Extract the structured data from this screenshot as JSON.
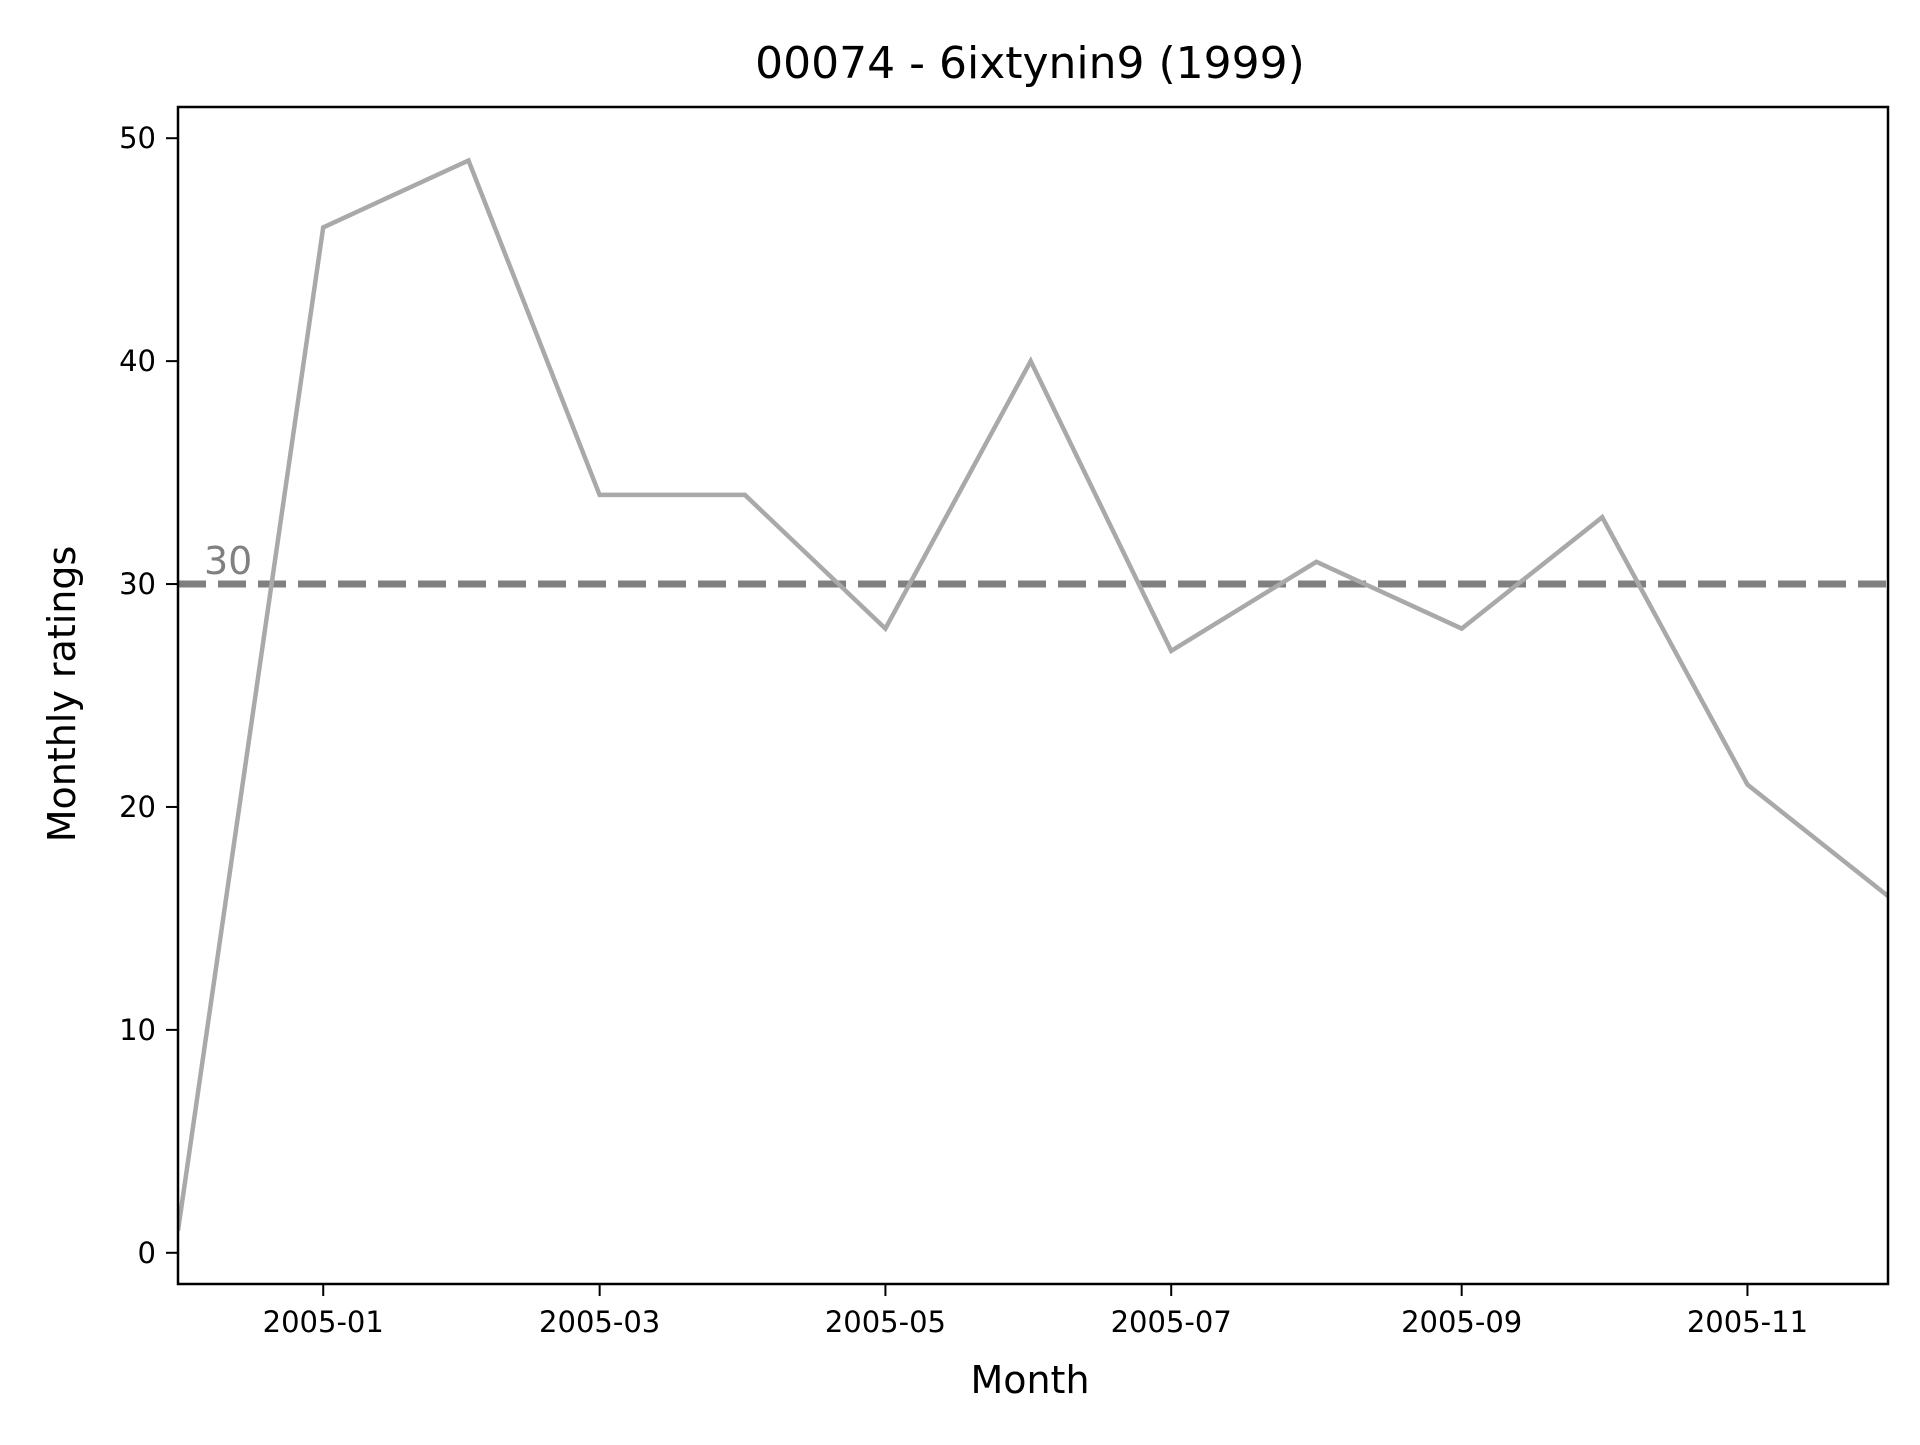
{
  "chart_data": {
    "type": "line",
    "title": "00074 - 6ixtynin9 (1999)",
    "xlabel": "Month",
    "ylabel": "Monthly ratings",
    "x": [
      "2004-12-01",
      "2005-01-01",
      "2005-02-01",
      "2005-03-01",
      "2005-04-01",
      "2005-05-01",
      "2005-06-01",
      "2005-07-01",
      "2005-08-01",
      "2005-09-01",
      "2005-10-01",
      "2005-11-01",
      "2005-12-01"
    ],
    "values": [
      1,
      46,
      49,
      34,
      34,
      28,
      40,
      27,
      31,
      28,
      33,
      21,
      16
    ],
    "xlim": [
      "2004-12-01",
      "2005-12-01"
    ],
    "ylim": [
      -1.4,
      51.4
    ],
    "xticks": [
      {
        "value": "2005-01-01",
        "label": "2005-01"
      },
      {
        "value": "2005-03-01",
        "label": "2005-03"
      },
      {
        "value": "2005-05-01",
        "label": "2005-05"
      },
      {
        "value": "2005-07-01",
        "label": "2005-07"
      },
      {
        "value": "2005-09-01",
        "label": "2005-09"
      },
      {
        "value": "2005-11-01",
        "label": "2005-11"
      }
    ],
    "yticks": [
      0,
      10,
      20,
      30,
      40,
      50
    ],
    "reference_line": {
      "value": 30,
      "label": "30",
      "style": "dashed"
    },
    "grid": false,
    "colors": {
      "line": "#a9a9a9",
      "reference": "#808080",
      "reference_label": "#808080",
      "axes": "#000000"
    }
  }
}
